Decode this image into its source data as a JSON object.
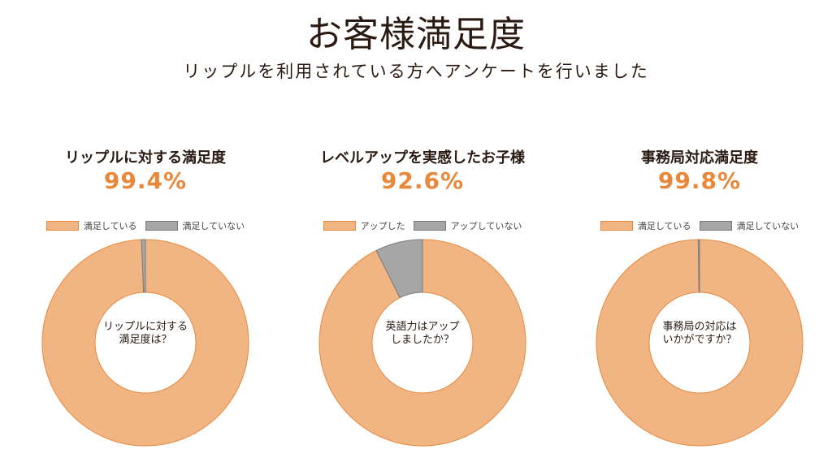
{
  "header": {
    "title": "お客様満足度",
    "subtitle": "リップルを利用されている方へアンケートを行いました"
  },
  "colors": {
    "positive": "#f1b584",
    "positive_border": "#e8883a",
    "negative": "#a6a6a6",
    "negative_border": "#7a7a7a",
    "percent": "#e8883a"
  },
  "chart_data": [
    {
      "type": "pie",
      "title": "リップルに対する満足度",
      "headline": "99.4%",
      "center_line1": "リップルに対する",
      "center_line2": "満足度は？",
      "categories": [
        "満足している",
        "満足していない"
      ],
      "values": [
        99.4,
        0.6
      ],
      "legend_position": "top"
    },
    {
      "type": "pie",
      "title": "レベルアップを実感したお子様",
      "headline": "92.6%",
      "center_line1": "英語力はアップ",
      "center_line2": "しましたか？",
      "categories": [
        "アップした",
        "アップしていない"
      ],
      "values": [
        92.6,
        7.4
      ],
      "legend_position": "top"
    },
    {
      "type": "pie",
      "title": "事務局対応満足度",
      "headline": "99.8%",
      "center_line1": "事務局の対応は",
      "center_line2": "いかがですか？",
      "categories": [
        "満足している",
        "満足していない"
      ],
      "values": [
        99.8,
        0.2
      ],
      "legend_position": "top"
    }
  ]
}
